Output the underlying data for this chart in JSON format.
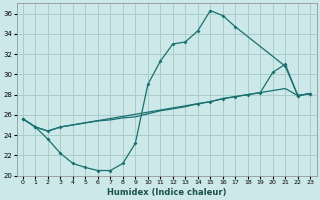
{
  "xlabel": "Humidex (Indice chaleur)",
  "bg_color": "#cce8e8",
  "grid_color": "#aacccc",
  "line_color": "#1a7070",
  "xlim": [
    -0.5,
    23.5
  ],
  "ylim": [
    20,
    37
  ],
  "xticks": [
    0,
    1,
    2,
    3,
    4,
    5,
    6,
    7,
    8,
    9,
    10,
    11,
    12,
    13,
    14,
    15,
    16,
    17,
    18,
    19,
    20,
    21,
    22,
    23
  ],
  "yticks": [
    20,
    22,
    24,
    26,
    28,
    30,
    32,
    34,
    36
  ],
  "curve1_x": [
    0,
    1,
    2,
    3,
    4,
    5,
    6,
    7,
    8,
    9,
    10,
    11,
    12,
    13,
    14,
    15,
    16,
    17,
    21,
    22,
    23
  ],
  "curve1_y": [
    25.6,
    24.8,
    23.6,
    22.2,
    21.2,
    20.8,
    20.5,
    20.5,
    21.2,
    23.2,
    29.0,
    31.3,
    33.0,
    33.2,
    34.3,
    36.3,
    35.8,
    34.7,
    30.8,
    27.9,
    28.1
  ],
  "curve2_x": [
    0,
    1,
    2,
    3,
    4,
    5,
    6,
    7,
    8,
    9,
    10,
    11,
    12,
    13,
    14,
    15,
    16,
    17,
    18,
    19,
    20,
    21,
    22,
    23
  ],
  "curve2_y": [
    25.6,
    24.8,
    24.4,
    24.8,
    25.0,
    25.2,
    25.4,
    25.5,
    25.7,
    25.8,
    26.1,
    26.4,
    26.6,
    26.8,
    27.1,
    27.3,
    27.6,
    27.8,
    28.0,
    28.2,
    28.4,
    28.6,
    27.9,
    28.1
  ],
  "curve3_x": [
    0,
    1,
    2,
    3,
    14,
    15,
    16,
    17,
    18,
    19,
    20,
    21,
    22,
    23
  ],
  "curve3_y": [
    25.6,
    24.8,
    24.4,
    24.8,
    27.1,
    27.3,
    27.6,
    27.8,
    28.0,
    28.2,
    30.2,
    31.0,
    27.9,
    28.1
  ]
}
